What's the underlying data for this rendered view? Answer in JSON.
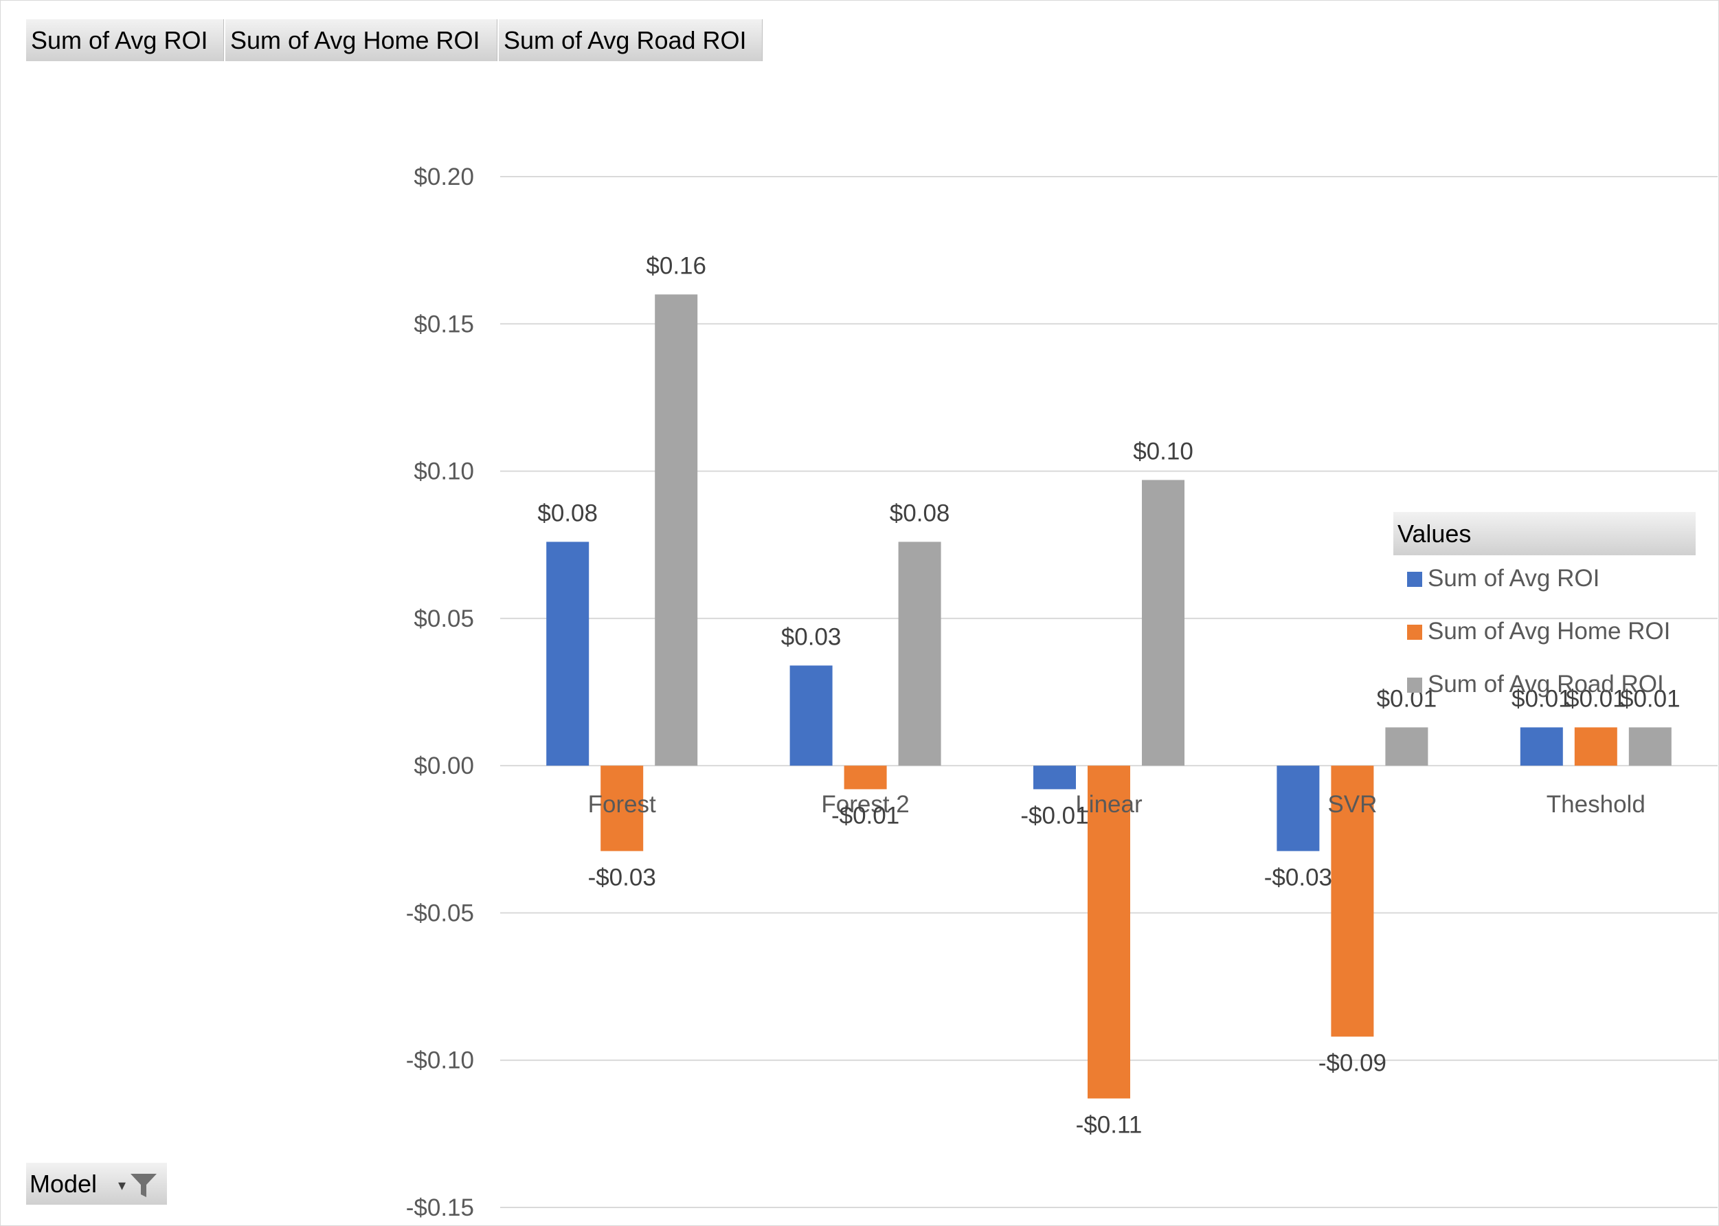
{
  "field_buttons": [
    "Sum of Avg ROI",
    "Sum of Avg Home ROI",
    "Sum of Avg Road ROI"
  ],
  "axis_field_button": {
    "label": "Model",
    "dropdown_icon": "dropdown-arrow-icon",
    "filter_icon": "filter-icon"
  },
  "legend": {
    "title": "Values",
    "items": [
      {
        "label": "Sum of Avg ROI",
        "color": "#4472c4"
      },
      {
        "label": "Sum of Avg Home ROI",
        "color": "#ed7d31"
      },
      {
        "label": "Sum of Avg Road ROI",
        "color": "#a5a5a5"
      }
    ]
  },
  "chart_data": {
    "type": "bar",
    "categories": [
      "Forest",
      "Forest 2",
      "Linear",
      "SVR",
      "Theshold"
    ],
    "series": [
      {
        "name": "Sum of Avg ROI",
        "color": "#4472c4",
        "values": [
          0.076,
          0.034,
          -0.008,
          -0.029,
          0.013
        ],
        "labels": [
          "$0.08",
          "$0.03",
          "-$0.01",
          "-$0.03",
          "$0.01"
        ]
      },
      {
        "name": "Sum of Avg Home ROI",
        "color": "#ed7d31",
        "values": [
          -0.029,
          -0.008,
          -0.113,
          -0.092,
          0.013
        ],
        "labels": [
          "-$0.03",
          "-$0.01",
          "-$0.11",
          "-$0.09",
          "$0.01"
        ]
      },
      {
        "name": "Sum of Avg Road ROI",
        "color": "#a5a5a5",
        "values": [
          0.16,
          0.076,
          0.097,
          0.013,
          0.013
        ],
        "labels": [
          "$0.16",
          "$0.08",
          "$0.10",
          "$0.01",
          "$0.01"
        ]
      }
    ],
    "y_ticks": [
      0.2,
      0.15,
      0.1,
      0.05,
      0.0,
      -0.05,
      -0.1,
      -0.15
    ],
    "y_tick_labels": [
      "$0.20",
      "$0.15",
      "$0.10",
      "$0.05",
      "$0.00",
      "-$0.05",
      "-$0.10",
      "-$0.15"
    ],
    "ylim": [
      -0.15,
      0.2
    ],
    "grid": true,
    "legend_position": "right"
  }
}
